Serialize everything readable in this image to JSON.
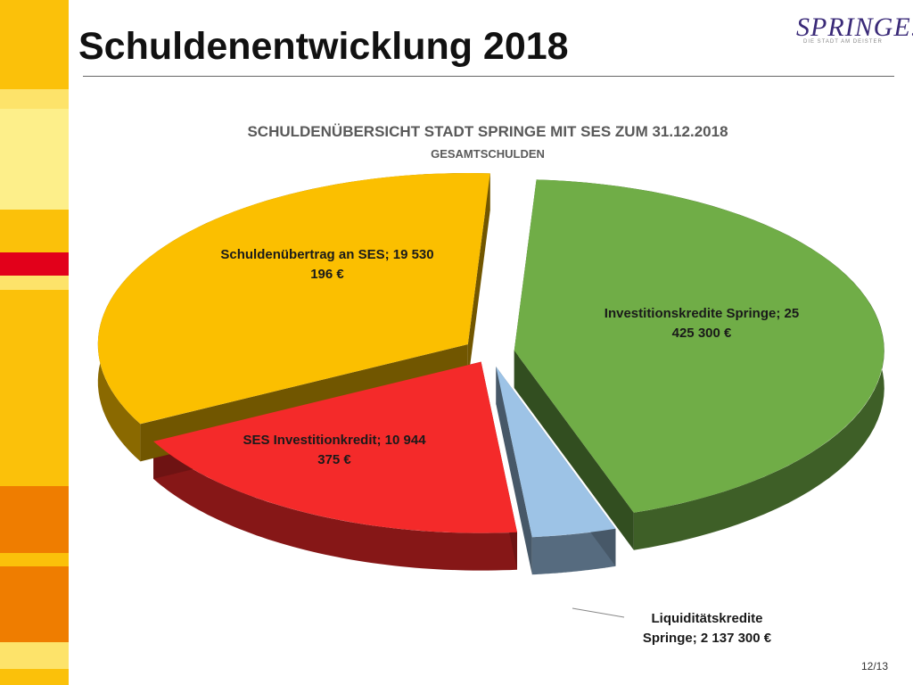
{
  "slide": {
    "title": "Schuldenentwicklung 2018",
    "page_number": "12/13",
    "logo": {
      "text": "SPRINGE.",
      "tagline": "DIE STADT AM DEISTER",
      "color": "#3a2a78"
    }
  },
  "chart_data": {
    "type": "pie",
    "title": "SCHULDENÜBERSICHT STADT SPRINGE MIT SES ZUM 31.12.2018",
    "subtitle": "GESAMTSCHULDEN",
    "unit": "€",
    "slices": [
      {
        "name": "Investitionskredite Springe",
        "value": 25425300,
        "label_line1": "Investitionskredite Springe;  25",
        "label_line2": "425 300 €",
        "color": "#70ad47"
      },
      {
        "name": "Liquiditätskredite Springe",
        "value": 2137300,
        "label_line1": "Liquiditätskredite",
        "label_line2": "Springe; 2 137 300 €",
        "color": "#9dc3e6"
      },
      {
        "name": "SES Investitionkredit",
        "value": 10944375,
        "label_line1": "SES Investitionkredit;  10 944",
        "label_line2": "375 €",
        "color": "#f42a2a"
      },
      {
        "name": "Schuldenübertrag an SES",
        "value": 19530196,
        "label_line1": "Schuldenübertrag an SES;  19 530",
        "label_line2": "196 €",
        "color": "#fbbf00"
      }
    ]
  }
}
